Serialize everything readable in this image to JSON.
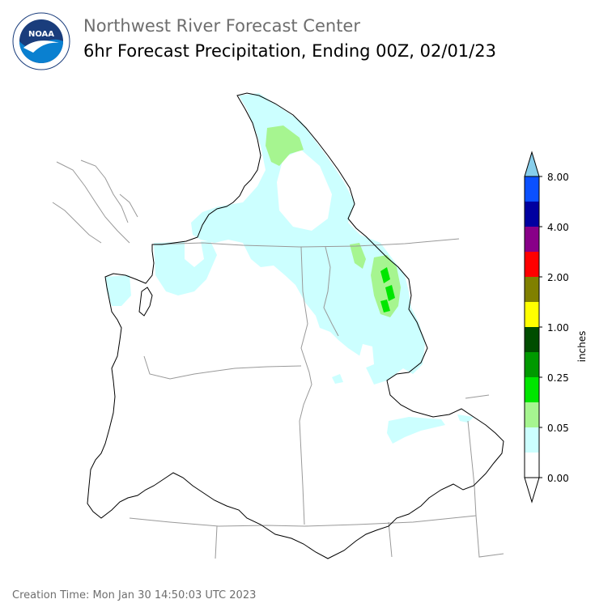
{
  "header": {
    "org": "Northwest River Forecast Center",
    "product": "6hr Forecast Precipitation, Ending 00Z, 02/01/23",
    "logo_text": "NOAA"
  },
  "colorbar": {
    "unit_label": "inches",
    "tick_labels": [
      "0.00",
      "0.05",
      "0.25",
      "1.00",
      "2.00",
      "4.00",
      "8.00"
    ],
    "bins": [
      "#ffffff",
      "#ccffff",
      "#a6f590",
      "#00e600",
      "#009900",
      "#004d00",
      "#ffff00",
      "#808000",
      "#ff0000",
      "#880088",
      "#0000a0",
      "#0a50ff",
      "#87ceeb"
    ],
    "extend": "both"
  },
  "map_colors": {
    "light_cyan": "#ccffff",
    "light_green": "#a6f590",
    "bright_green": "#00e600",
    "state_lines": "#999999",
    "coast": "#000000"
  },
  "footer": {
    "creation_time": "Creation Time: Mon Jan 30 14:50:03 UTC 2023"
  }
}
